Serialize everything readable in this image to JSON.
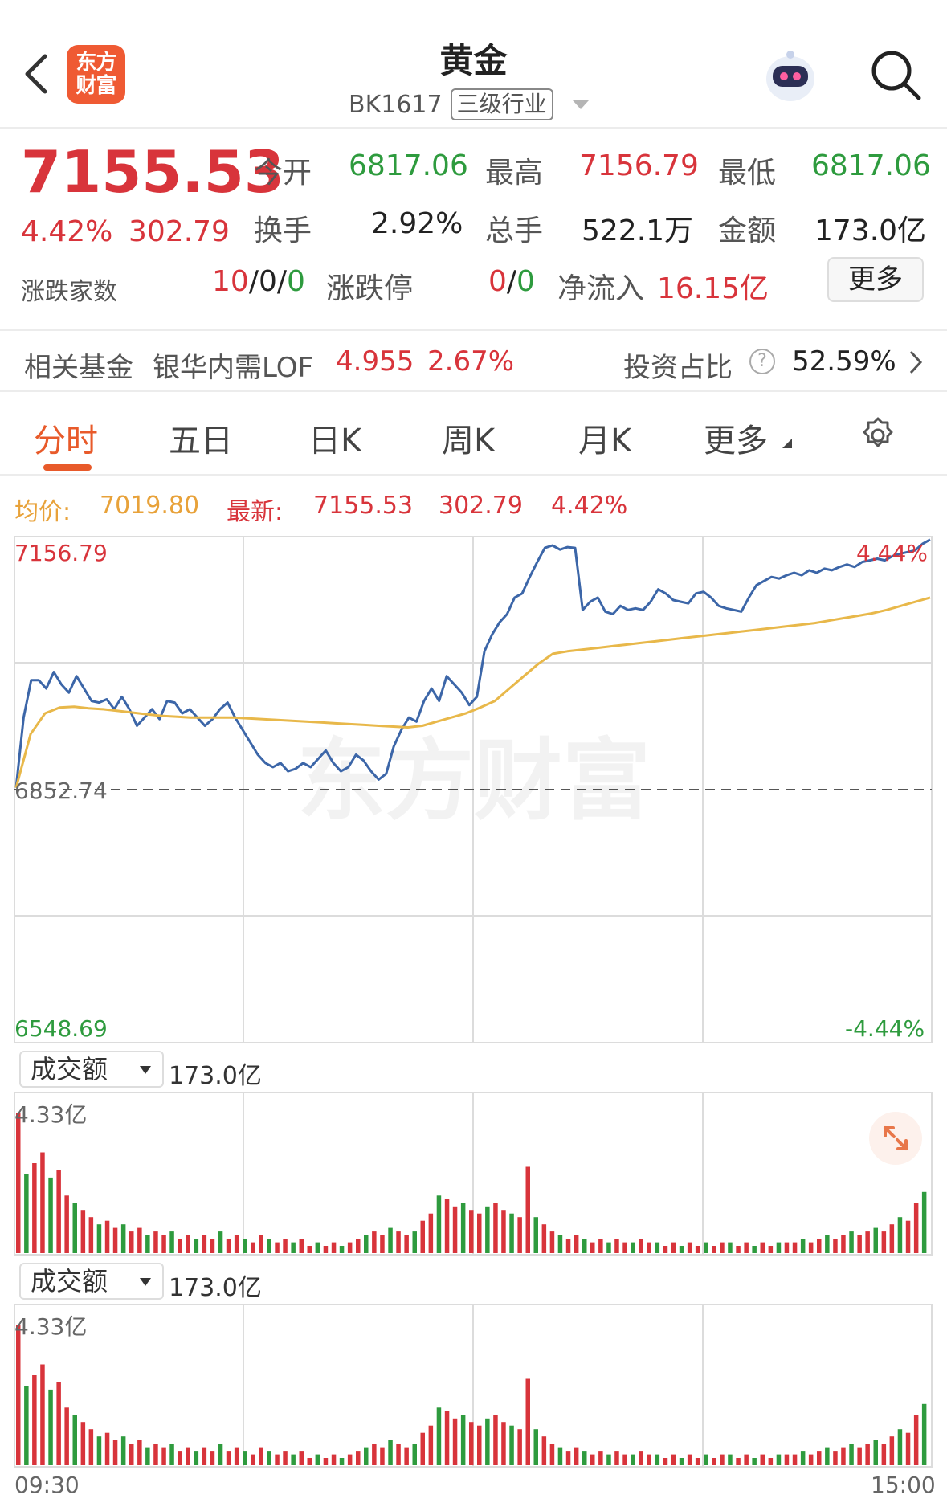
{
  "header": {
    "logo_text": "东方财富",
    "title": "黄金",
    "code": "BK1617",
    "level_tag": "三级行业"
  },
  "quote": {
    "price": "7155.53",
    "change_pct": "4.42%",
    "change": "302.79",
    "open_label": "今开",
    "open": "6817.06",
    "high_label": "最高",
    "high": "7156.79",
    "low_label": "最低",
    "low": "6817.06",
    "turnover_label": "换手",
    "turnover": "2.92%",
    "volume_label": "总手",
    "volume": "522.1万",
    "amount_label": "金额",
    "amount": "173.0亿",
    "breadth_label": "涨跌家数",
    "breadth_up": "10",
    "breadth_flat": "0",
    "breadth_down": "0",
    "limit_label": "涨跌停",
    "limit_up": "0",
    "limit_down": "0",
    "inflow_label": "净流入",
    "inflow": "16.15亿",
    "more": "更多"
  },
  "fund": {
    "label": "相关基金",
    "name": "银华内需LOF",
    "price": "4.955",
    "pct": "2.67%",
    "ratio_label": "投资占比",
    "ratio": "52.59%"
  },
  "tabs": [
    "分时",
    "五日",
    "日K",
    "周K",
    "月K",
    "更多"
  ],
  "info_bar": {
    "avg_label": "均价:",
    "avg": "7019.80",
    "latest_label": "最新:",
    "latest": "7155.53",
    "change": "302.79",
    "pct": "4.42%"
  },
  "colors": {
    "up": "#d8343b",
    "down": "#2e9b3e",
    "price_line": "#3c66a8",
    "avg_line": "#e8b84a",
    "accent": "#e85a2a"
  },
  "chart_data": [
    {
      "type": "line",
      "y_axis_labels": {
        "top": "7156.79",
        "base": "6852.74",
        "bottom": "6548.69",
        "top_pct": "4.44%",
        "bottom_pct": "-4.44%"
      },
      "ylim": [
        6548.69,
        7156.79
      ],
      "base": 6852.74,
      "time_labels": [
        "09:30",
        "15:00"
      ],
      "series": [
        {
          "values": [
            6855,
            6940,
            6985,
            6985,
            6975,
            6995,
            6980,
            6970,
            6990,
            6975,
            6960,
            6958,
            6962,
            6950,
            6965,
            6950,
            6930,
            6940,
            6950,
            6938,
            6960,
            6958,
            6945,
            6950,
            6940,
            6930,
            6938,
            6950,
            6958,
            6940,
            6925,
            6910,
            6895,
            6885,
            6880,
            6885,
            6875,
            6878,
            6885,
            6880,
            6890,
            6900,
            6885,
            6875,
            6880,
            6895,
            6888,
            6875,
            6865,
            6872,
            6905,
            6925,
            6940,
            6935,
            6960,
            6975,
            6960,
            6990,
            6980,
            6970,
            6955,
            6965,
            7020,
            7040,
            7055,
            7065,
            7085,
            7090,
            7110,
            7128,
            7145,
            7148,
            7143,
            7146,
            7145,
            7070,
            7080,
            7085,
            7068,
            7065,
            7075,
            7070,
            7072,
            7070,
            7080,
            7095,
            7090,
            7082,
            7080,
            7078,
            7090,
            7092,
            7085,
            7075,
            7072,
            7070,
            7068,
            7085,
            7100,
            7105,
            7110,
            7108,
            7112,
            7115,
            7112,
            7118,
            7115,
            7120,
            7118,
            7122,
            7125,
            7122,
            7128,
            7130,
            7132,
            7130,
            7135,
            7138,
            7140,
            7142,
            7150,
            7155
          ],
          "color": "#3c66a8"
        },
        {
          "values": [
            6855,
            6920,
            6945,
            6952,
            6953,
            6951,
            6950,
            6948,
            6946,
            6944,
            6942,
            6941,
            6940,
            6940,
            6940,
            6940,
            6939,
            6938,
            6937,
            6936,
            6935,
            6934,
            6933,
            6932,
            6931,
            6930,
            6929,
            6928,
            6930,
            6935,
            6940,
            6945,
            6952,
            6960,
            6975,
            6990,
            7005,
            7017,
            7020,
            7022,
            7024,
            7026,
            7028,
            7030,
            7032,
            7034,
            7036,
            7038,
            7040,
            7042,
            7044,
            7046,
            7048,
            7050,
            7052,
            7054,
            7057,
            7060,
            7063,
            7066,
            7070,
            7075,
            7080,
            7085
          ],
          "color": "#e8b84a"
        }
      ]
    },
    {
      "type": "bar",
      "title": "成交额",
      "total": "173.0亿",
      "ymax_label": "4.33亿",
      "ylim": [
        0,
        4.33
      ],
      "values_yi": [
        3.9,
        2.2,
        2.5,
        2.8,
        2.1,
        2.3,
        1.6,
        1.4,
        1.2,
        1.0,
        0.8,
        0.9,
        0.7,
        0.8,
        0.6,
        0.7,
        0.5,
        0.6,
        0.5,
        0.6,
        0.4,
        0.5,
        0.4,
        0.5,
        0.4,
        0.6,
        0.4,
        0.5,
        0.4,
        0.3,
        0.5,
        0.4,
        0.3,
        0.4,
        0.3,
        0.4,
        0.2,
        0.3,
        0.2,
        0.3,
        0.2,
        0.3,
        0.4,
        0.5,
        0.6,
        0.5,
        0.7,
        0.6,
        0.5,
        0.6,
        0.9,
        1.1,
        1.6,
        1.5,
        1.3,
        1.4,
        1.2,
        1.1,
        1.3,
        1.4,
        1.2,
        1.1,
        1.0,
        2.4,
        1.0,
        0.8,
        0.6,
        0.5,
        0.4,
        0.5,
        0.4,
        0.3,
        0.4,
        0.3,
        0.4,
        0.3,
        0.3,
        0.4,
        0.3,
        0.3,
        0.2,
        0.3,
        0.2,
        0.3,
        0.2,
        0.3,
        0.2,
        0.3,
        0.3,
        0.2,
        0.3,
        0.2,
        0.3,
        0.2,
        0.3,
        0.3,
        0.3,
        0.4,
        0.3,
        0.4,
        0.5,
        0.4,
        0.5,
        0.6,
        0.5,
        0.6,
        0.7,
        0.6,
        0.8,
        1.0,
        0.9,
        1.4,
        1.7
      ],
      "colors_pattern": "alternating up/down"
    }
  ],
  "volume_panel_2": {
    "title": "成交额",
    "total": "173.0亿",
    "ymax_label": "4.33亿"
  }
}
